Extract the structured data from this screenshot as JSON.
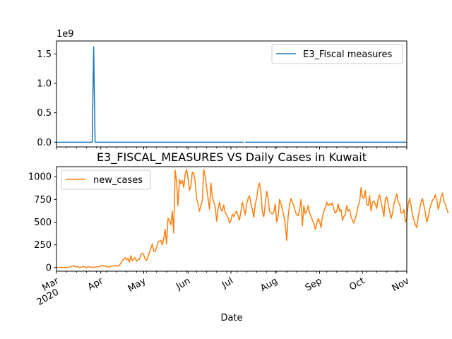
{
  "chart_data": [
    {
      "type": "line",
      "title": "",
      "xlabel": "",
      "ylabel": "",
      "y_offset_label": "1e9",
      "y_ticks": [
        "0.0",
        "0.5",
        "1.0",
        "1.5"
      ],
      "y_tick_values": [
        0,
        0.5,
        1.0,
        1.5
      ],
      "ylim": [
        -0.08,
        1.72
      ],
      "xlim": [
        "2020-03-01",
        "2020-11-01"
      ],
      "legend": "top-right",
      "series": [
        {
          "name": "E3_Fiscal measures",
          "color": "#1f77b4",
          "points": [
            [
              "2020-03-01",
              0
            ],
            [
              "2020-03-26",
              0
            ],
            [
              "2020-03-27",
              1.62
            ],
            [
              "2020-03-28",
              0
            ],
            [
              "2020-07-10",
              0
            ]
          ],
          "points_after_gap": [
            [
              "2020-07-11",
              0
            ],
            [
              "2020-11-01",
              0
            ]
          ]
        }
      ]
    },
    {
      "type": "line",
      "title": "E3_FISCAL_MEASURES VS Daily Cases in Kuwait",
      "xlabel": "Date",
      "ylabel": "",
      "y_ticks": [
        "0",
        "250",
        "500",
        "750",
        "1000"
      ],
      "y_tick_values": [
        0,
        250,
        500,
        750,
        1000
      ],
      "ylim": [
        -40,
        1110
      ],
      "xlim": [
        "2020-03-01",
        "2020-11-01"
      ],
      "x_ticks": [
        {
          "date": "2020-03-01",
          "label": "Mar",
          "sublabel": "2020"
        },
        {
          "date": "2020-04-01",
          "label": "Apr"
        },
        {
          "date": "2020-05-01",
          "label": "May"
        },
        {
          "date": "2020-06-01",
          "label": "Jun"
        },
        {
          "date": "2020-07-01",
          "label": "Jul"
        },
        {
          "date": "2020-08-01",
          "label": "Aug"
        },
        {
          "date": "2020-09-01",
          "label": "Sep"
        },
        {
          "date": "2020-10-01",
          "label": "Oct"
        },
        {
          "date": "2020-11-01",
          "label": "Nov"
        }
      ],
      "legend": "top-left",
      "series": [
        {
          "name": "new_cases",
          "color": "#ff7f0e",
          "start_date": "2020-03-01",
          "values": [
            5,
            0,
            0,
            5,
            0,
            0,
            2,
            0,
            0,
            3,
            10,
            15,
            20,
            10,
            8,
            12,
            0,
            5,
            8,
            12,
            5,
            2,
            6,
            10,
            5,
            3,
            2,
            5,
            10,
            8,
            12,
            18,
            25,
            15,
            20,
            10,
            8,
            5,
            12,
            15,
            20,
            25,
            20,
            15,
            30,
            45,
            80,
            90,
            110,
            85,
            100,
            60,
            130,
            75,
            95,
            110,
            70,
            85,
            90,
            145,
            160,
            140,
            95,
            80,
            120,
            170,
            210,
            260,
            180,
            175,
            220,
            280,
            290,
            300,
            250,
            320,
            420,
            260,
            540,
            520,
            470,
            620,
            380,
            1070,
            940,
            680,
            970,
            920,
            960,
            880,
            1030,
            1080,
            980,
            850,
            900,
            1050,
            1040,
            940,
            760,
            700,
            620,
            680,
            740,
            1080,
            1000,
            880,
            760,
            640,
            930,
            780,
            720,
            670,
            510,
            650,
            720,
            640,
            620,
            690,
            600,
            580,
            550,
            490,
            520,
            590,
            560,
            600,
            620,
            570,
            520,
            620,
            720,
            650,
            580,
            700,
            760,
            790,
            700,
            640,
            550,
            700,
            760,
            880,
            930,
            820,
            610,
            560,
            700,
            840,
            760,
            620,
            600,
            590,
            610,
            700,
            500,
            560,
            750,
            700,
            640,
            570,
            480,
            300,
            560,
            690,
            760,
            720,
            680,
            620,
            580,
            570,
            630,
            750,
            460,
            680,
            590,
            620,
            680,
            600,
            560,
            520,
            490,
            420,
            480,
            540,
            510,
            440,
            560,
            620,
            660,
            720,
            680,
            700,
            690,
            710,
            640,
            600,
            620,
            700,
            620,
            640,
            520,
            560,
            590,
            680,
            620,
            640,
            560,
            520,
            490,
            540,
            600,
            680,
            720,
            880,
            780,
            760,
            850,
            700,
            680,
            790,
            620,
            720,
            730,
            700,
            650,
            760,
            800,
            720,
            650,
            560,
            760,
            780,
            700,
            620,
            540,
            600,
            700,
            760,
            810,
            720,
            700,
            600,
            600,
            640,
            500,
            540,
            700,
            760,
            680,
            580,
            520,
            470,
            440,
            560,
            640,
            720,
            760,
            680,
            600,
            500,
            560,
            640,
            700,
            740,
            760,
            800,
            740,
            640,
            700,
            780,
            820,
            720,
            700,
            640,
            600
          ]
        }
      ]
    }
  ]
}
